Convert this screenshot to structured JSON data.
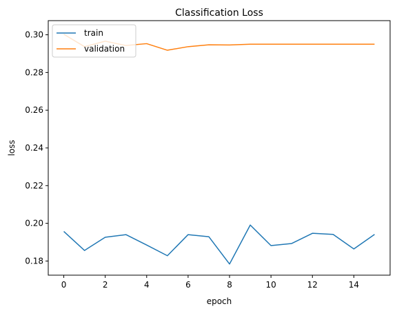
{
  "chart_data": {
    "type": "line",
    "title": "Classification Loss",
    "xlabel": "epoch",
    "ylabel": "loss",
    "xlim": [
      -0.75,
      15.75
    ],
    "ylim": [
      0.1725,
      0.3075
    ],
    "xticks": [
      0,
      2,
      4,
      6,
      8,
      10,
      12,
      14
    ],
    "yticks": [
      0.18,
      0.2,
      0.22,
      0.24,
      0.26,
      0.28,
      0.3
    ],
    "ytick_labels": [
      "0.18",
      "0.20",
      "0.22",
      "0.24",
      "0.26",
      "0.28",
      "0.30"
    ],
    "grid": false,
    "legend_position": "upper-left",
    "x": [
      0,
      1,
      2,
      3,
      4,
      5,
      6,
      7,
      8,
      9,
      10,
      11,
      12,
      13,
      14,
      15
    ],
    "series": [
      {
        "name": "train",
        "color": "#1f77b4",
        "values": [
          0.1957,
          0.1856,
          0.1926,
          0.194,
          0.1885,
          0.1828,
          0.194,
          0.1929,
          0.1784,
          0.1991,
          0.1882,
          0.1893,
          0.1947,
          0.1941,
          0.1864,
          0.1941
        ]
      },
      {
        "name": "validation",
        "color": "#ff7f0e",
        "values": [
          0.3003,
          0.2937,
          0.2966,
          0.2943,
          0.2953,
          0.2918,
          0.2937,
          0.2947,
          0.2946,
          0.295,
          0.295,
          0.295,
          0.295,
          0.295,
          0.295,
          0.295
        ]
      }
    ]
  }
}
